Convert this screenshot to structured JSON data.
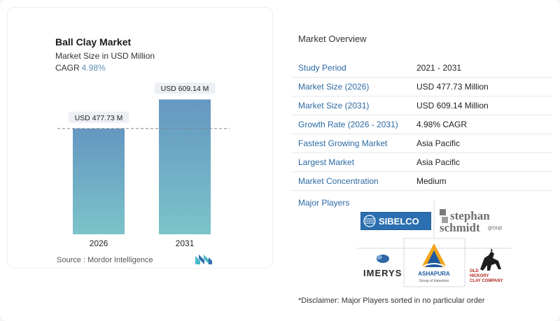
{
  "chart_data": {
    "type": "bar",
    "title": "Ball Clay Market",
    "subtitle": "Market Size in USD Million",
    "cagr_label": "CAGR",
    "cagr_value": "4.98%",
    "categories": [
      "2026",
      "2031"
    ],
    "values": [
      477.73,
      609.14
    ],
    "data_labels": [
      "USD 477.73 M",
      "USD 609.14 M"
    ],
    "colors": {
      "bar_top": "#6597c2",
      "bar_bottom": "#7cc3c9",
      "label_bg": "#eceff3"
    },
    "reference_line": "dashed at 2026 value",
    "grid": false,
    "legend": "none"
  },
  "source": {
    "label": "Source :",
    "value": "Mordor Intelligence"
  },
  "overview": {
    "title": "Market Overview",
    "rows": [
      {
        "key": "Study Period",
        "value": "2021 - 2031"
      },
      {
        "key": "Market Size (2026)",
        "value": "USD 477.73 Million"
      },
      {
        "key": "Market Size (2031)",
        "value": "USD 609.14 Million"
      },
      {
        "key": "Growth Rate (2026 - 2031)",
        "value": "4.98% CAGR"
      },
      {
        "key": "Fastest Growing Market",
        "value": "Asia Pacific"
      },
      {
        "key": "Largest Market",
        "value": "Asia Pacific"
      },
      {
        "key": "Market Concentration",
        "value": "Medium"
      }
    ],
    "players_label": "Major Players",
    "players": [
      "SIBELCO",
      "stephan schmidt group",
      "IMERYS",
      "ASHAPURA Group of Industries",
      "OLD HICKORY CLAY COMPANY"
    ],
    "disclaimer": "*Disclaimer: Major Players sorted in no particular order"
  }
}
